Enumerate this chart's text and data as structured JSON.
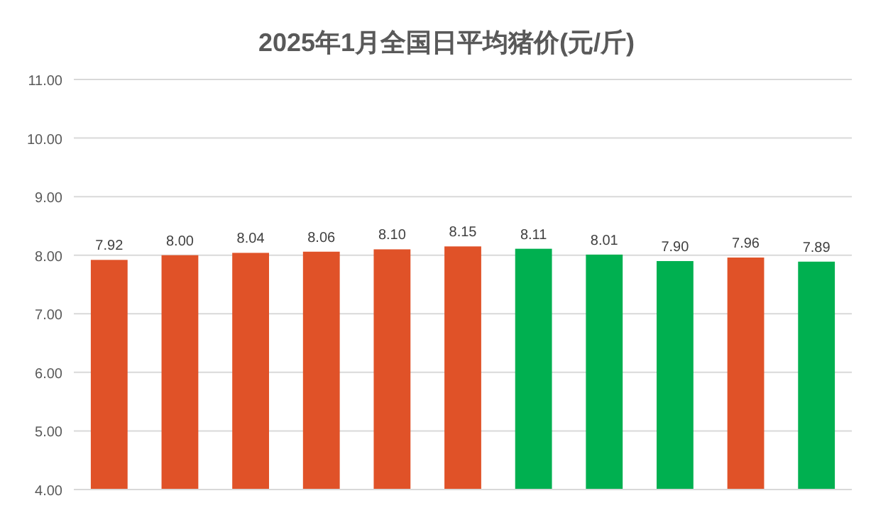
{
  "chart_data": {
    "type": "bar",
    "title": "2025年1月全国日平均猪价(元/斤)",
    "categories": [
      null,
      null,
      null,
      null,
      null,
      null,
      null,
      null,
      null,
      null,
      null
    ],
    "values": [
      7.92,
      8.0,
      8.04,
      8.06,
      8.1,
      8.15,
      8.11,
      8.01,
      7.9,
      7.96,
      7.89
    ],
    "colors": [
      "#e05228",
      "#e05228",
      "#e05228",
      "#e05228",
      "#e05228",
      "#e05228",
      "#00b050",
      "#00b050",
      "#00b050",
      "#e05228",
      "#00b050"
    ],
    "ylim": [
      4,
      11
    ],
    "yticks": [
      {
        "value": 4,
        "label": "4.00"
      },
      {
        "value": 5,
        "label": "5.00"
      },
      {
        "value": 6,
        "label": "6.00"
      },
      {
        "value": 7,
        "label": "7.00"
      },
      {
        "value": 8,
        "label": "8.00"
      },
      {
        "value": 9,
        "label": "9.00"
      },
      {
        "value": 10,
        "label": "10.00"
      },
      {
        "value": 11,
        "label": "11.00"
      }
    ],
    "grid": "y",
    "value_labels": [
      "7.92",
      "8.00",
      "8.04",
      "8.06",
      "8.10",
      "8.15",
      "8.11",
      "8.01",
      "7.90",
      "7.96",
      "7.89"
    ]
  }
}
